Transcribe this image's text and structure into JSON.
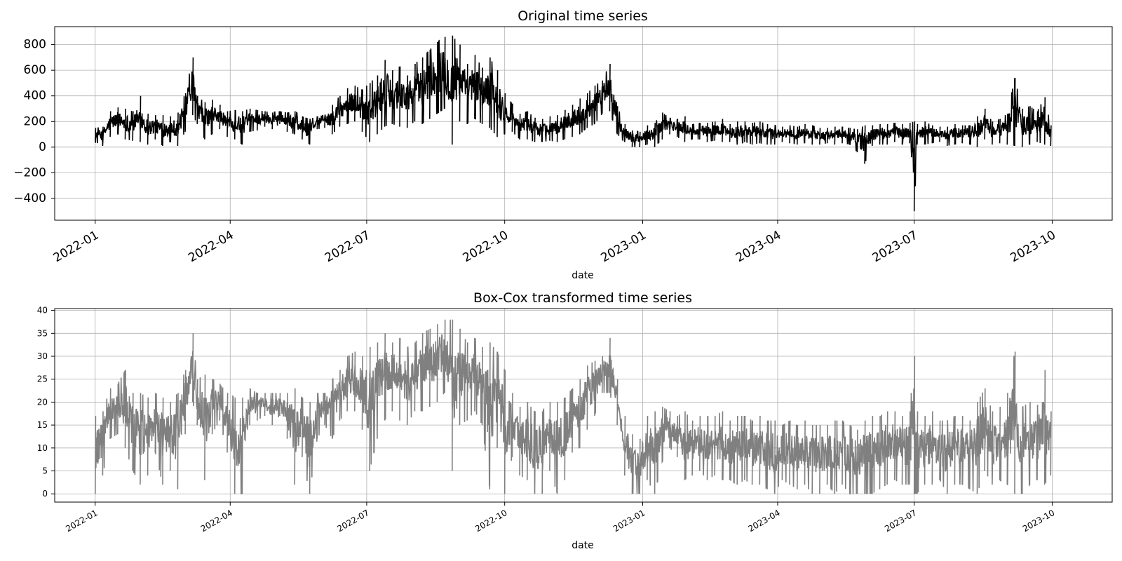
{
  "chart_data": [
    {
      "type": "line",
      "title": "Original time series",
      "xlabel": "date",
      "ylabel": "",
      "xlim": [
        "2021-12-05",
        "2023-11-10"
      ],
      "ylim": [
        -570,
        940
      ],
      "grid": true,
      "line_color": "#000000",
      "yticks": [
        -400,
        -200,
        0,
        200,
        400,
        600,
        800
      ],
      "ytick_labels": [
        "−400",
        "−200",
        "0",
        "200",
        "400",
        "600",
        "800"
      ],
      "xticks": [
        "2022-01-01",
        "2022-04-01",
        "2022-07-01",
        "2022-10-01",
        "2023-01-01",
        "2023-04-01",
        "2023-07-01",
        "2023-10-01"
      ],
      "xtick_labels": [
        "2022-01",
        "2022-04",
        "2022-07",
        "2022-10",
        "2023-01",
        "2023-04",
        "2023-07",
        "2023-10"
      ],
      "series": [
        {
          "x": [
            "2022-01-01",
            "2022-01-06",
            "2022-01-11",
            "2022-01-16",
            "2022-01-21",
            "2022-01-26",
            "2022-01-31",
            "2022-02-05",
            "2022-02-10",
            "2022-02-15",
            "2022-02-20",
            "2022-02-25",
            "2022-03-02",
            "2022-03-07",
            "2022-03-10",
            "2022-03-15",
            "2022-03-20",
            "2022-03-25",
            "2022-03-30",
            "2022-04-04",
            "2022-04-09",
            "2022-04-14",
            "2022-04-19",
            "2022-04-24",
            "2022-04-29",
            "2022-05-04",
            "2022-05-09",
            "2022-05-14",
            "2022-05-19",
            "2022-05-24",
            "2022-05-29",
            "2022-06-03",
            "2022-06-08",
            "2022-06-13",
            "2022-06-18",
            "2022-06-23",
            "2022-06-28",
            "2022-07-03",
            "2022-07-08",
            "2022-07-13",
            "2022-07-18",
            "2022-07-23",
            "2022-07-28",
            "2022-08-02",
            "2022-08-07",
            "2022-08-12",
            "2022-08-17",
            "2022-08-22",
            "2022-08-27",
            "2022-09-01",
            "2022-09-06",
            "2022-09-11",
            "2022-09-16",
            "2022-09-21",
            "2022-09-26",
            "2022-10-01",
            "2022-10-06",
            "2022-10-11",
            "2022-10-16",
            "2022-10-21",
            "2022-10-26",
            "2022-10-31",
            "2022-11-05",
            "2022-11-10",
            "2022-11-15",
            "2022-11-20",
            "2022-11-25",
            "2022-11-30",
            "2022-12-05",
            "2022-12-10",
            "2022-12-15",
            "2022-12-20",
            "2022-12-25",
            "2022-12-30",
            "2023-01-04",
            "2023-01-09",
            "2023-01-14",
            "2023-01-19",
            "2023-01-24",
            "2023-01-29",
            "2023-02-03",
            "2023-02-08",
            "2023-02-13",
            "2023-02-18",
            "2023-02-23",
            "2023-02-28",
            "2023-03-05",
            "2023-03-10",
            "2023-03-15",
            "2023-03-20",
            "2023-03-25",
            "2023-03-30",
            "2023-04-04",
            "2023-04-09",
            "2023-04-14",
            "2023-04-19",
            "2023-04-24",
            "2023-04-29",
            "2023-05-04",
            "2023-05-09",
            "2023-05-14",
            "2023-05-19",
            "2023-05-24",
            "2023-05-29",
            "2023-06-03",
            "2023-06-08",
            "2023-06-13",
            "2023-06-18",
            "2023-06-23",
            "2023-06-28",
            "2023-07-01",
            "2023-07-03",
            "2023-07-08",
            "2023-07-13",
            "2023-07-18",
            "2023-07-23",
            "2023-07-28",
            "2023-08-02",
            "2023-08-07",
            "2023-08-12",
            "2023-08-17",
            "2023-08-22",
            "2023-08-27",
            "2023-09-01",
            "2023-09-06",
            "2023-09-11",
            "2023-09-16",
            "2023-09-21",
            "2023-09-26",
            "2023-09-30"
          ],
          "low": [
            40,
            10,
            80,
            100,
            60,
            50,
            40,
            20,
            60,
            10,
            40,
            10,
            120,
            250,
            180,
            60,
            100,
            140,
            80,
            60,
            20,
            120,
            130,
            160,
            140,
            180,
            120,
            100,
            60,
            20,
            140,
            150,
            100,
            160,
            180,
            200,
            120,
            40,
            100,
            160,
            180,
            160,
            150,
            200,
            180,
            220,
            260,
            300,
            20,
            200,
            180,
            220,
            180,
            150,
            80,
            100,
            120,
            60,
            60,
            40,
            40,
            50,
            40,
            60,
            80,
            100,
            150,
            180,
            260,
            280,
            100,
            40,
            0,
            0,
            20,
            0,
            60,
            100,
            80,
            40,
            60,
            60,
            40,
            50,
            40,
            40,
            20,
            40,
            20,
            30,
            20,
            20,
            40,
            30,
            20,
            30,
            20,
            20,
            30,
            20,
            30,
            20,
            -40,
            -130,
            10,
            20,
            20,
            40,
            20,
            30,
            -500,
            20,
            20,
            30,
            40,
            10,
            20,
            30,
            20,
            0,
            60,
            20,
            30,
            20,
            10,
            0,
            20,
            40,
            20,
            10
          ],
          "high": [
            150,
            160,
            280,
            310,
            300,
            280,
            400,
            260,
            250,
            250,
            240,
            270,
            420,
            700,
            400,
            350,
            370,
            330,
            280,
            290,
            280,
            300,
            290,
            280,
            270,
            280,
            270,
            280,
            240,
            220,
            240,
            250,
            330,
            400,
            460,
            480,
            450,
            500,
            560,
            680,
            600,
            630,
            560,
            650,
            700,
            760,
            820,
            860,
            870,
            800,
            650,
            720,
            620,
            700,
            600,
            420,
            340,
            260,
            280,
            230,
            220,
            240,
            250,
            290,
            330,
            380,
            420,
            480,
            520,
            650,
            320,
            180,
            130,
            120,
            170,
            190,
            270,
            230,
            220,
            240,
            180,
            190,
            190,
            200,
            220,
            180,
            200,
            200,
            190,
            200,
            180,
            170,
            160,
            170,
            160,
            180,
            170,
            150,
            150,
            160,
            160,
            150,
            140,
            170,
            170,
            180,
            180,
            190,
            180,
            190,
            200,
            180,
            200,
            170,
            160,
            160,
            180,
            170,
            170,
            240,
            300,
            200,
            220,
            260,
            540,
            300,
            320,
            280,
            390,
            170
          ]
        }
      ]
    },
    {
      "type": "line",
      "title": "Box-Cox transformed time series",
      "xlabel": "date",
      "ylabel": "",
      "xlim": [
        "2021-12-05",
        "2023-11-10"
      ],
      "ylim": [
        -1.8,
        40.4
      ],
      "grid": true,
      "line_color": "#808080",
      "yticks": [
        0,
        5,
        10,
        15,
        20,
        25,
        30,
        35,
        40
      ],
      "ytick_labels": [
        "0",
        "5",
        "10",
        "15",
        "20",
        "25",
        "30",
        "35",
        "40"
      ],
      "xticks": [
        "2022-01-01",
        "2022-04-01",
        "2022-07-01",
        "2022-10-01",
        "2023-01-01",
        "2023-04-01",
        "2023-07-01",
        "2023-10-01"
      ],
      "xtick_labels": [
        "2022-01",
        "2022-04",
        "2022-07",
        "2022-10",
        "2023-01",
        "2023-04",
        "2023-07",
        "2023-10"
      ],
      "series": [
        {
          "x": [
            "2022-01-01",
            "2022-01-06",
            "2022-01-11",
            "2022-01-16",
            "2022-01-21",
            "2022-01-26",
            "2022-01-31",
            "2022-02-05",
            "2022-02-10",
            "2022-02-15",
            "2022-02-20",
            "2022-02-25",
            "2022-03-02",
            "2022-03-07",
            "2022-03-10",
            "2022-03-15",
            "2022-03-20",
            "2022-03-25",
            "2022-03-30",
            "2022-04-04",
            "2022-04-09",
            "2022-04-14",
            "2022-04-19",
            "2022-04-24",
            "2022-04-29",
            "2022-05-04",
            "2022-05-09",
            "2022-05-14",
            "2022-05-19",
            "2022-05-24",
            "2022-05-29",
            "2022-06-03",
            "2022-06-08",
            "2022-06-13",
            "2022-06-18",
            "2022-06-23",
            "2022-06-28",
            "2022-07-03",
            "2022-07-08",
            "2022-07-13",
            "2022-07-18",
            "2022-07-23",
            "2022-07-28",
            "2022-08-02",
            "2022-08-07",
            "2022-08-12",
            "2022-08-17",
            "2022-08-22",
            "2022-08-27",
            "2022-09-01",
            "2022-09-06",
            "2022-09-11",
            "2022-09-16",
            "2022-09-21",
            "2022-09-26",
            "2022-10-01",
            "2022-10-06",
            "2022-10-11",
            "2022-10-16",
            "2022-10-21",
            "2022-10-26",
            "2022-10-31",
            "2022-11-05",
            "2022-11-10",
            "2022-11-15",
            "2022-11-20",
            "2022-11-25",
            "2022-11-30",
            "2022-12-05",
            "2022-12-10",
            "2022-12-15",
            "2022-12-20",
            "2022-12-25",
            "2022-12-30",
            "2023-01-04",
            "2023-01-09",
            "2023-01-14",
            "2023-01-19",
            "2023-01-24",
            "2023-01-29",
            "2023-02-03",
            "2023-02-08",
            "2023-02-13",
            "2023-02-18",
            "2023-02-23",
            "2023-02-28",
            "2023-03-05",
            "2023-03-10",
            "2023-03-15",
            "2023-03-20",
            "2023-03-25",
            "2023-03-30",
            "2023-04-04",
            "2023-04-09",
            "2023-04-14",
            "2023-04-19",
            "2023-04-24",
            "2023-04-29",
            "2023-05-04",
            "2023-05-09",
            "2023-05-14",
            "2023-05-19",
            "2023-05-24",
            "2023-05-29",
            "2023-06-03",
            "2023-06-08",
            "2023-06-13",
            "2023-06-18",
            "2023-06-23",
            "2023-06-28",
            "2023-07-01",
            "2023-07-03",
            "2023-07-08",
            "2023-07-13",
            "2023-07-18",
            "2023-07-23",
            "2023-07-28",
            "2023-08-02",
            "2023-08-07",
            "2023-08-12",
            "2023-08-17",
            "2023-08-22",
            "2023-08-27",
            "2023-09-01",
            "2023-09-06",
            "2023-09-11",
            "2023-09-16",
            "2023-09-21",
            "2023-09-26",
            "2023-09-30"
          ],
          "low": [
            0,
            4,
            12,
            13,
            10,
            5,
            2,
            4,
            9,
            2,
            5,
            1,
            13,
            20,
            15,
            3,
            13,
            16,
            9,
            0,
            0,
            15,
            16,
            17,
            15,
            17,
            12,
            2,
            8,
            0,
            12,
            15,
            12,
            16,
            18,
            18,
            14,
            5,
            12,
            16,
            18,
            16,
            15,
            18,
            18,
            19,
            20,
            22,
            5,
            15,
            16,
            18,
            15,
            1,
            10,
            0,
            8,
            4,
            3,
            0,
            0,
            5,
            0,
            3,
            9,
            10,
            14,
            17,
            22,
            22,
            15,
            4,
            0,
            0,
            3,
            0,
            7,
            10,
            8,
            3,
            4,
            5,
            3,
            4,
            3,
            3,
            2,
            3,
            2,
            2,
            1,
            0,
            3,
            2,
            1,
            2,
            0,
            0,
            2,
            0,
            2,
            0,
            0,
            0,
            0,
            1,
            2,
            3,
            2,
            2,
            0,
            0,
            2,
            2,
            3,
            0,
            2,
            2,
            1,
            0,
            5,
            2,
            3,
            2,
            0,
            0,
            2,
            3,
            2,
            4
          ],
          "high": [
            17,
            18,
            23,
            24,
            27,
            22,
            22,
            21,
            22,
            21,
            20,
            22,
            27,
            35,
            25,
            26,
            25,
            24,
            22,
            21,
            21,
            23,
            22,
            22,
            22,
            22,
            22,
            23,
            21,
            20,
            22,
            22,
            25,
            27,
            30,
            31,
            30,
            32,
            33,
            35,
            33,
            34,
            32,
            33,
            35,
            36,
            37,
            38,
            38,
            36,
            33,
            34,
            32,
            33,
            31,
            27,
            22,
            19,
            20,
            18,
            18,
            20,
            20,
            21,
            23,
            25,
            28,
            29,
            30,
            34,
            25,
            17,
            13,
            12,
            17,
            18,
            19,
            18,
            17,
            18,
            16,
            17,
            17,
            17,
            18,
            16,
            17,
            17,
            16,
            17,
            16,
            16,
            15,
            16,
            15,
            16,
            15,
            15,
            15,
            16,
            16,
            15,
            14,
            16,
            17,
            17,
            18,
            18,
            17,
            18,
            30,
            18,
            17,
            18,
            16,
            16,
            17,
            17,
            16,
            20,
            23,
            18,
            19,
            22,
            31,
            19,
            20,
            19,
            27,
            18
          ]
        }
      ]
    }
  ]
}
